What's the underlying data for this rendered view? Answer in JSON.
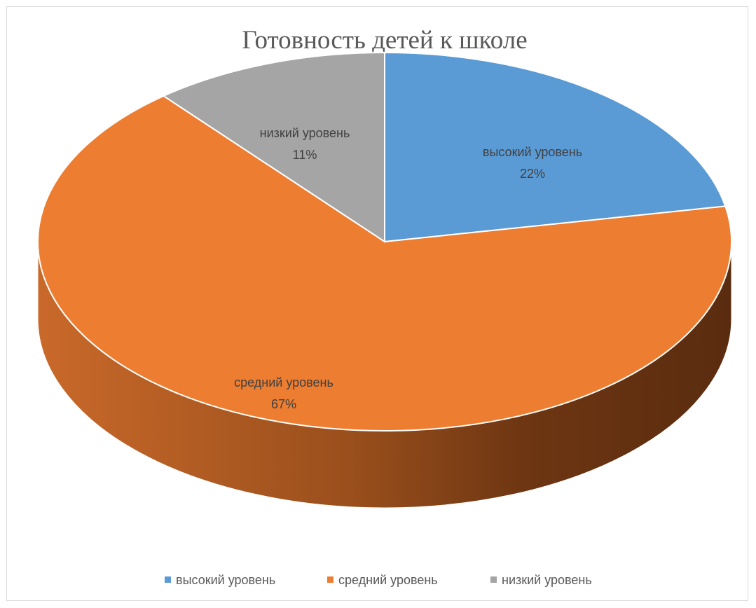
{
  "chart_data": {
    "type": "pie",
    "title": "Готовность детей к школе",
    "categories": [
      "высокий уровень",
      "средний уровень",
      "низкий уровень"
    ],
    "values": [
      22,
      67,
      11
    ],
    "data_labels": [
      {
        "name": "высокий уровень",
        "value": "22%"
      },
      {
        "name": "средний уровень",
        "value": "67%"
      },
      {
        "name": "низкий уровень",
        "value": "11%"
      }
    ],
    "colors": [
      "#5B9BD5",
      "#ED7D31",
      "#A5A5A5"
    ],
    "side_colors": [
      "#3E78B0",
      "#C2621F",
      "#7F7F7F"
    ],
    "legend_position": "bottom",
    "three_d": true
  }
}
